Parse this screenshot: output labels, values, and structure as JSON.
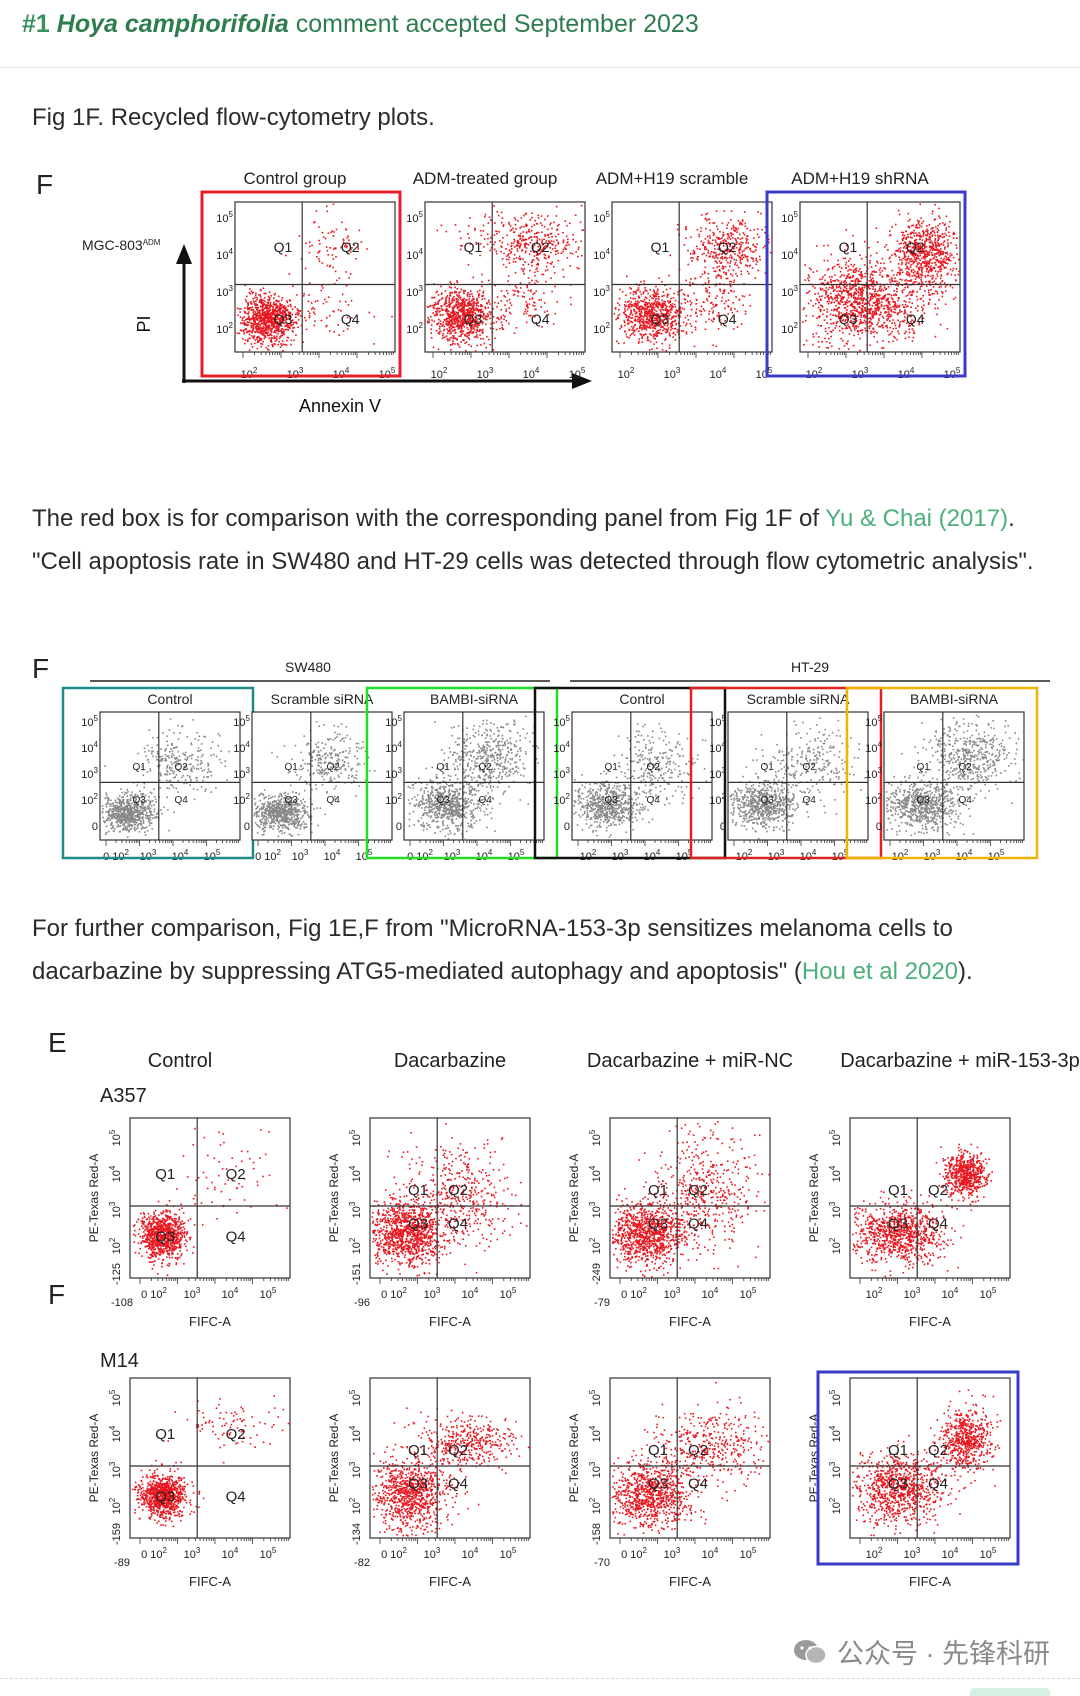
{
  "header": {
    "number": "#1",
    "species": "Hoya camphorifolia",
    "status": "comment accepted September 2023"
  },
  "para1": {
    "text": "Fig 1F. Recycled flow-cytometry plots."
  },
  "para2": {
    "before": "The red box is for comparison with the corresponding panel from Fig 1F of ",
    "link": "Yu & Chai (2017)",
    "after": ". \"Cell apoptosis rate in SW480 and HT-29 cells was detected through flow cytometric analysis\"."
  },
  "para3": {
    "before": "For further comparison, Fig 1E,F from \"MicroRNA-153-3p sensitizes melanoma cells to dacarbazine by suppressing ATG5-mediated autophagy and apoptosis\" (",
    "link": "Hou et al 2020",
    "after": ")."
  },
  "fig1": {
    "letter": "F",
    "cell_label": "MGC-803",
    "cell_sup": "ADM",
    "ylabel": "PI",
    "xlabel": "Annexin V",
    "titles": [
      "Control group",
      "ADM-treated group",
      "ADM+H19 scramble",
      "ADM+H19 shRNA"
    ],
    "yticks": [
      "10",
      "10",
      "10",
      "10"
    ],
    "yexp": [
      "5",
      "4",
      "3",
      "2"
    ],
    "xticks": [
      "10",
      "10",
      "10",
      "10"
    ],
    "xexp": [
      "2",
      "3",
      "4",
      "5"
    ],
    "quads": [
      "Q1",
      "Q2",
      "Q3",
      "Q4"
    ],
    "box_colors": [
      "#e0202a",
      null,
      null,
      "#3a3cc9"
    ]
  },
  "fig2": {
    "letter": "F",
    "group1": "SW480",
    "group2": "HT-29",
    "titles": [
      "Control",
      "Scramble siRNA",
      "BAMBI-siRNA",
      "Control",
      "Scramble siRNA",
      "BAMBI-siRNA"
    ],
    "yticks": [
      "10",
      "10",
      "10",
      "10",
      "0"
    ],
    "yexp": [
      "5",
      "4",
      "3",
      "2",
      ""
    ],
    "xticks": [
      "0 10",
      "10",
      "10",
      "10"
    ],
    "xexp": [
      "2",
      "3",
      "4",
      "5"
    ],
    "xticks_nz": [
      "10",
      "10",
      "10",
      "10"
    ],
    "quads": [
      "Q1",
      "Q2",
      "Q3",
      "Q4"
    ],
    "box_colors": [
      "#1e8a8a",
      null,
      "#22dd22",
      "#111111",
      "#dd2222",
      "#f0b400"
    ]
  },
  "fig3": {
    "letterE": "E",
    "letterF": "F",
    "titles": [
      "Control",
      "Dacarbazine",
      "Dacarbazine + miR-NC",
      "Dacarbazine + miR-153-3p"
    ],
    "cellE": "A357",
    "cellF": "M14",
    "ylabel": "PE-Texas Red-A",
    "xlabel": "FIFC-A",
    "yticks": [
      "10",
      "10",
      "10",
      "10"
    ],
    "yexp": [
      "5",
      "4",
      "3",
      "2"
    ],
    "xticks": [
      "0 10",
      "10",
      "10",
      "10"
    ],
    "xexp": [
      "2",
      "3",
      "4",
      "5"
    ],
    "xticks_nz": [
      "10",
      "10",
      "10",
      "10"
    ],
    "rowE_ymin": [
      "-125",
      "-151",
      "-249",
      ""
    ],
    "rowE_xmin": [
      "-108",
      "-96",
      "-79",
      ""
    ],
    "rowF_ymin": [
      "-159",
      "-134",
      "-158",
      ""
    ],
    "rowF_xmin": [
      "-89",
      "-82",
      "-70",
      ""
    ],
    "quads": [
      "Q1",
      "Q2",
      "Q3",
      "Q4"
    ],
    "box_color": "#3a3cc9"
  },
  "watermark": {
    "text": "公众号 · 先锋科研",
    "icon": "wechat-icon"
  }
}
